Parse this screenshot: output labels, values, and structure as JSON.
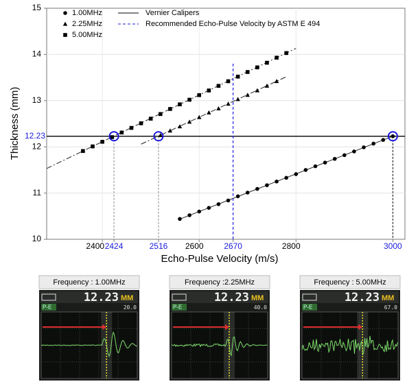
{
  "chart_data": {
    "type": "scatter",
    "ylabel": "Thickness (mm)",
    "xlabel": "Echo-Pulse Velocity (m/s)",
    "xlim": [
      2285,
      3025
    ],
    "ylim": [
      10,
      15
    ],
    "xticks": [
      2400,
      2600,
      2800
    ],
    "yticks": [
      10,
      11,
      12,
      13,
      14,
      15
    ],
    "xticks_highlight": [
      2424,
      2516,
      2670,
      3000
    ],
    "yticks_highlight": [
      12.23
    ],
    "highlight_color": "#1a1adc",
    "grid": true,
    "series": [
      {
        "name": "1.00MHz",
        "marker": "circle",
        "color": "#000000",
        "fit_from": 2560,
        "x": [
          2560,
          2580,
          2600,
          2620,
          2640,
          2660,
          2680,
          2700,
          2720,
          2740,
          2760,
          2780,
          2800,
          2820,
          2840,
          2860,
          2880,
          2900,
          2920,
          2940,
          2960,
          2980,
          3000
        ],
        "values": [
          10.44,
          10.52,
          10.6,
          10.68,
          10.76,
          10.84,
          10.93,
          11.01,
          11.09,
          11.17,
          11.25,
          11.33,
          11.41,
          11.5,
          11.58,
          11.66,
          11.74,
          11.82,
          11.9,
          11.99,
          12.07,
          12.15,
          12.23
        ]
      },
      {
        "name": "2.25MHz",
        "marker": "triangle",
        "color": "#000000",
        "fit_from": 2480,
        "x": [
          2520,
          2540,
          2560,
          2580,
          2600,
          2620,
          2640,
          2660,
          2680,
          2700,
          2720,
          2740,
          2760
        ],
        "values": [
          12.25,
          12.35,
          12.44,
          12.54,
          12.64,
          12.74,
          12.83,
          12.93,
          13.03,
          13.12,
          13.22,
          13.32,
          13.42
        ]
      },
      {
        "name": "5.00MHz",
        "marker": "square",
        "color": "#000000",
        "fit_from": 2285,
        "x": [
          2360,
          2380,
          2400,
          2420,
          2440,
          2460,
          2480,
          2500,
          2520,
          2540,
          2560,
          2580,
          2600,
          2620,
          2640,
          2660,
          2680,
          2700,
          2720,
          2740,
          2760,
          2780
        ],
        "values": [
          11.91,
          12.01,
          12.11,
          12.21,
          12.31,
          12.41,
          12.51,
          12.61,
          12.71,
          12.82,
          12.92,
          13.02,
          13.12,
          13.22,
          13.32,
          13.42,
          13.52,
          13.62,
          13.72,
          13.82,
          13.93,
          14.03
        ]
      }
    ],
    "reference_lines": [
      {
        "name": "Vernier Calipers",
        "axis": "y",
        "value": 12.23,
        "color": "#000000",
        "style": "solid"
      },
      {
        "name": "Recommended Echo-Pulse Velocity by ASTM E 494",
        "axis": "x",
        "value": 2670,
        "top": 13.8,
        "color": "#1a1adc",
        "style": "dashed"
      }
    ],
    "matches": [
      {
        "x": 2424,
        "y": 12.23
      },
      {
        "x": 2516,
        "y": 12.23
      },
      {
        "x": 3000,
        "y": 12.23
      }
    ]
  },
  "panels": [
    {
      "title": "Frequency : 1.00MHz",
      "reading": "12.23",
      "unit": "MM",
      "mode": "P-E",
      "gain": "20.0"
    },
    {
      "title": "Frequency :2.25MHz",
      "reading": "12.23",
      "unit": "MM",
      "mode": "P-E",
      "gain": "40.0"
    },
    {
      "title": "Frequency : 5.00MHz",
      "reading": "12.23",
      "unit": "MM",
      "mode": "P-E",
      "gain": "67.0"
    }
  ]
}
